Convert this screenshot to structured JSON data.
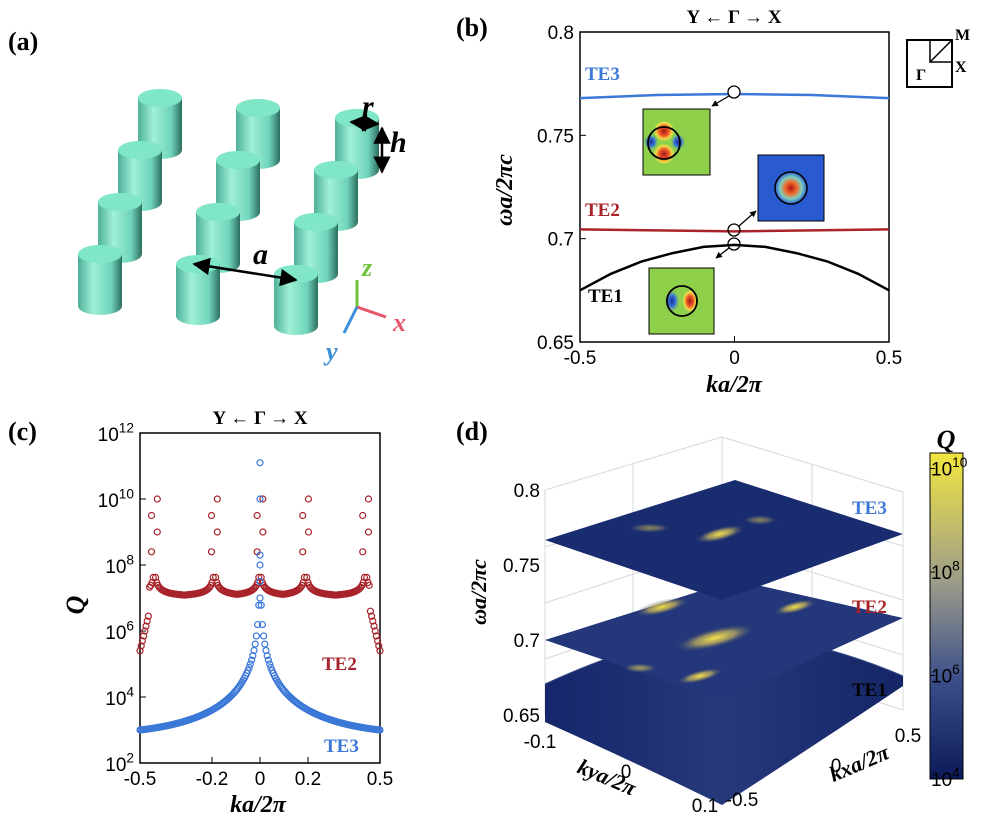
{
  "panel_labels": [
    "(a)",
    "(b)",
    "(c)",
    "(d)"
  ],
  "schematic": {
    "labels": {
      "r": "r",
      "h": "h",
      "a": "a"
    },
    "axes": {
      "x": "x",
      "y": "y",
      "z": "z"
    },
    "axis_colors": {
      "x": "#e8566a",
      "y": "#3b8fd9",
      "z": "#6fc23a"
    },
    "pillar_color": "#7fe6c8"
  },
  "chart_data": [
    {
      "id": "b",
      "type": "line",
      "title": "Y ← Γ → X",
      "xlabel": "ka/2π",
      "ylabel": "ωa/2πc",
      "xlim": [
        -0.5,
        0.5
      ],
      "ylim": [
        0.65,
        0.8
      ],
      "xticks": [
        "-0.5",
        "0",
        "0.5"
      ],
      "yticks": [
        "0.65",
        "0.7",
        "0.75",
        "0.8"
      ],
      "series": [
        {
          "name": "TE3",
          "color": "#3b78d8",
          "x": [
            -0.5,
            -0.25,
            0,
            0.25,
            0.5
          ],
          "y": [
            0.768,
            0.7695,
            0.77,
            0.7695,
            0.768
          ]
        },
        {
          "name": "TE2",
          "color": "#a8232a",
          "x": [
            -0.5,
            -0.25,
            0,
            0.25,
            0.5
          ],
          "y": [
            0.7045,
            0.704,
            0.7035,
            0.704,
            0.7045
          ]
        },
        {
          "name": "TE1",
          "color": "#000000",
          "x": [
            -0.5,
            -0.4,
            -0.3,
            -0.2,
            -0.1,
            0,
            0.1,
            0.2,
            0.3,
            0.4,
            0.5
          ],
          "y": [
            0.675,
            0.683,
            0.689,
            0.693,
            0.696,
            0.697,
            0.696,
            0.693,
            0.689,
            0.683,
            0.675
          ]
        }
      ],
      "brillouin_zone": {
        "labels": [
          "M",
          "X",
          "Γ"
        ]
      }
    },
    {
      "id": "c",
      "type": "scatter",
      "title": "Y ← Γ → X",
      "xlabel": "ka/2π",
      "ylabel": "Q",
      "xlim": [
        -0.5,
        0.5
      ],
      "ylim_log10": [
        2,
        12
      ],
      "xticks": [
        "-0.5",
        "-0.2",
        "0",
        "0.2",
        "0.5"
      ],
      "yticks_exp": [
        "2",
        "4",
        "6",
        "8",
        "10",
        "12"
      ],
      "yticks_base": "10",
      "series": [
        {
          "name": "TE2",
          "color": "#a8232a",
          "peaks": [
            -0.44,
            -0.19,
            0,
            0.19,
            0.44
          ],
          "baseline_log10": 7.0,
          "edge_log10": 5.4
        },
        {
          "name": "TE3",
          "color": "#3b78d8",
          "peak_log10": 11.1,
          "baseline_log10": 3.0
        }
      ]
    },
    {
      "id": "d",
      "type": "heatmap",
      "xlabel": "kxa/2π",
      "ylabel": "kya/2π",
      "zlabel": "ωa/2πc",
      "xticks": [
        "-0.5",
        "0",
        "0.5"
      ],
      "yticks": [
        "-0.1",
        "0",
        "0.1"
      ],
      "zticks": [
        "0.65",
        "0.7",
        "0.75",
        "0.8"
      ],
      "surfaces": [
        "TE3",
        "TE2",
        "TE1"
      ],
      "colorbar": {
        "label": "Q",
        "scale": "log",
        "ticks_exp": [
          "4",
          "6",
          "8",
          "10"
        ],
        "base": "10",
        "min_color": "#0c1a5a",
        "max_color": "#f0e34a"
      }
    }
  ]
}
